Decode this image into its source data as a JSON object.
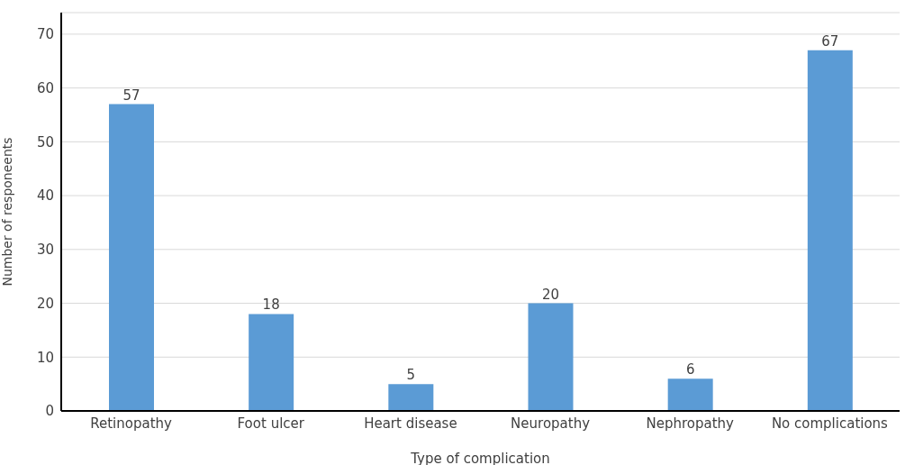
{
  "chart_data": {
    "type": "bar",
    "xlabel": "Type of complication",
    "ylabel": "Number of responeents",
    "categories": [
      "Retinopathy",
      "Foot ulcer",
      "Heart disease",
      "Neuropathy",
      "Nephropathy",
      "No complications"
    ],
    "values": [
      57,
      18,
      5,
      20,
      6,
      67
    ],
    "color": "#5b9bd5",
    "ylim": [
      0,
      74
    ],
    "yticks": [
      0,
      10,
      20,
      30,
      40,
      50,
      60,
      70
    ],
    "grid": "y",
    "data_labels": true
  }
}
